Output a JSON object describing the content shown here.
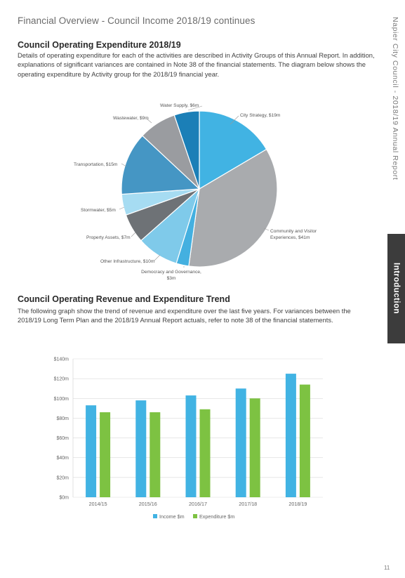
{
  "header": {
    "title": "Financial Overview - Council Income 2018/19 continues",
    "side_text": "Napier City Council - 2018/19 Annual Report",
    "tab_label": "Introduction",
    "page_number": "11"
  },
  "expenditure_section": {
    "title": "Council Operating Expenditure 2018/19",
    "paragraph": "Details of operating expenditure for each of the activities are described in Activity Groups of this Annual Report. In addition, explanations of significant variances are contained in Note 38 of the financial statements. The diagram below shows the operating expenditure by Activity group for the 2018/19 financial year."
  },
  "trend_section": {
    "title": "Council Operating Revenue and Expenditure Trend",
    "paragraph": "The following graph show the trend of revenue and expenditure over the last five years. For variances between the 2018/19 Long Term Plan and the 2018/19 Annual Report actuals, refer to note 38 of the financial statements."
  },
  "chart_data": [
    {
      "type": "pie",
      "title": "",
      "slices": [
        {
          "label": "City Strategy, $19m",
          "value": 19,
          "color": "#41b3e3"
        },
        {
          "label": "Community and Visitor Experiences, $41m",
          "value": 41,
          "color": "#a9abae"
        },
        {
          "label": "Democracy and Governance, $3m",
          "value": 3,
          "color": "#44b0e0"
        },
        {
          "label": "Other Infrastructure, $10m",
          "value": 10,
          "color": "#7fcaea"
        },
        {
          "label": "Property Assets, $7m",
          "value": 7,
          "color": "#6e7276"
        },
        {
          "label": "Stormwater, $5m",
          "value": 5,
          "color": "#a6dcf2"
        },
        {
          "label": "Transportation, $15m",
          "value": 15,
          "color": "#4596c4"
        },
        {
          "label": "Wastewater, $9m",
          "value": 9,
          "color": "#9a9ca0"
        },
        {
          "label": "Water Supply, $6m",
          "value": 6,
          "color": "#1b7fb7"
        }
      ]
    },
    {
      "type": "bar",
      "title": "",
      "categories": [
        "2014/15",
        "2015/16",
        "2016/17",
        "2017/18",
        "2018/19"
      ],
      "series": [
        {
          "name": "Income $m",
          "values": [
            93,
            98,
            103,
            110,
            125
          ],
          "color": "#41b3e3"
        },
        {
          "name": "Expenditure $m",
          "values": [
            86,
            86,
            89,
            100,
            114
          ],
          "color": "#7dc242"
        }
      ],
      "ylim": [
        0,
        140
      ],
      "yticks": [
        "$0m",
        "$20m",
        "$40m",
        "$60m",
        "$80m",
        "$100m",
        "$120m",
        "$140m"
      ],
      "grid": true,
      "legend": "bottom"
    }
  ]
}
